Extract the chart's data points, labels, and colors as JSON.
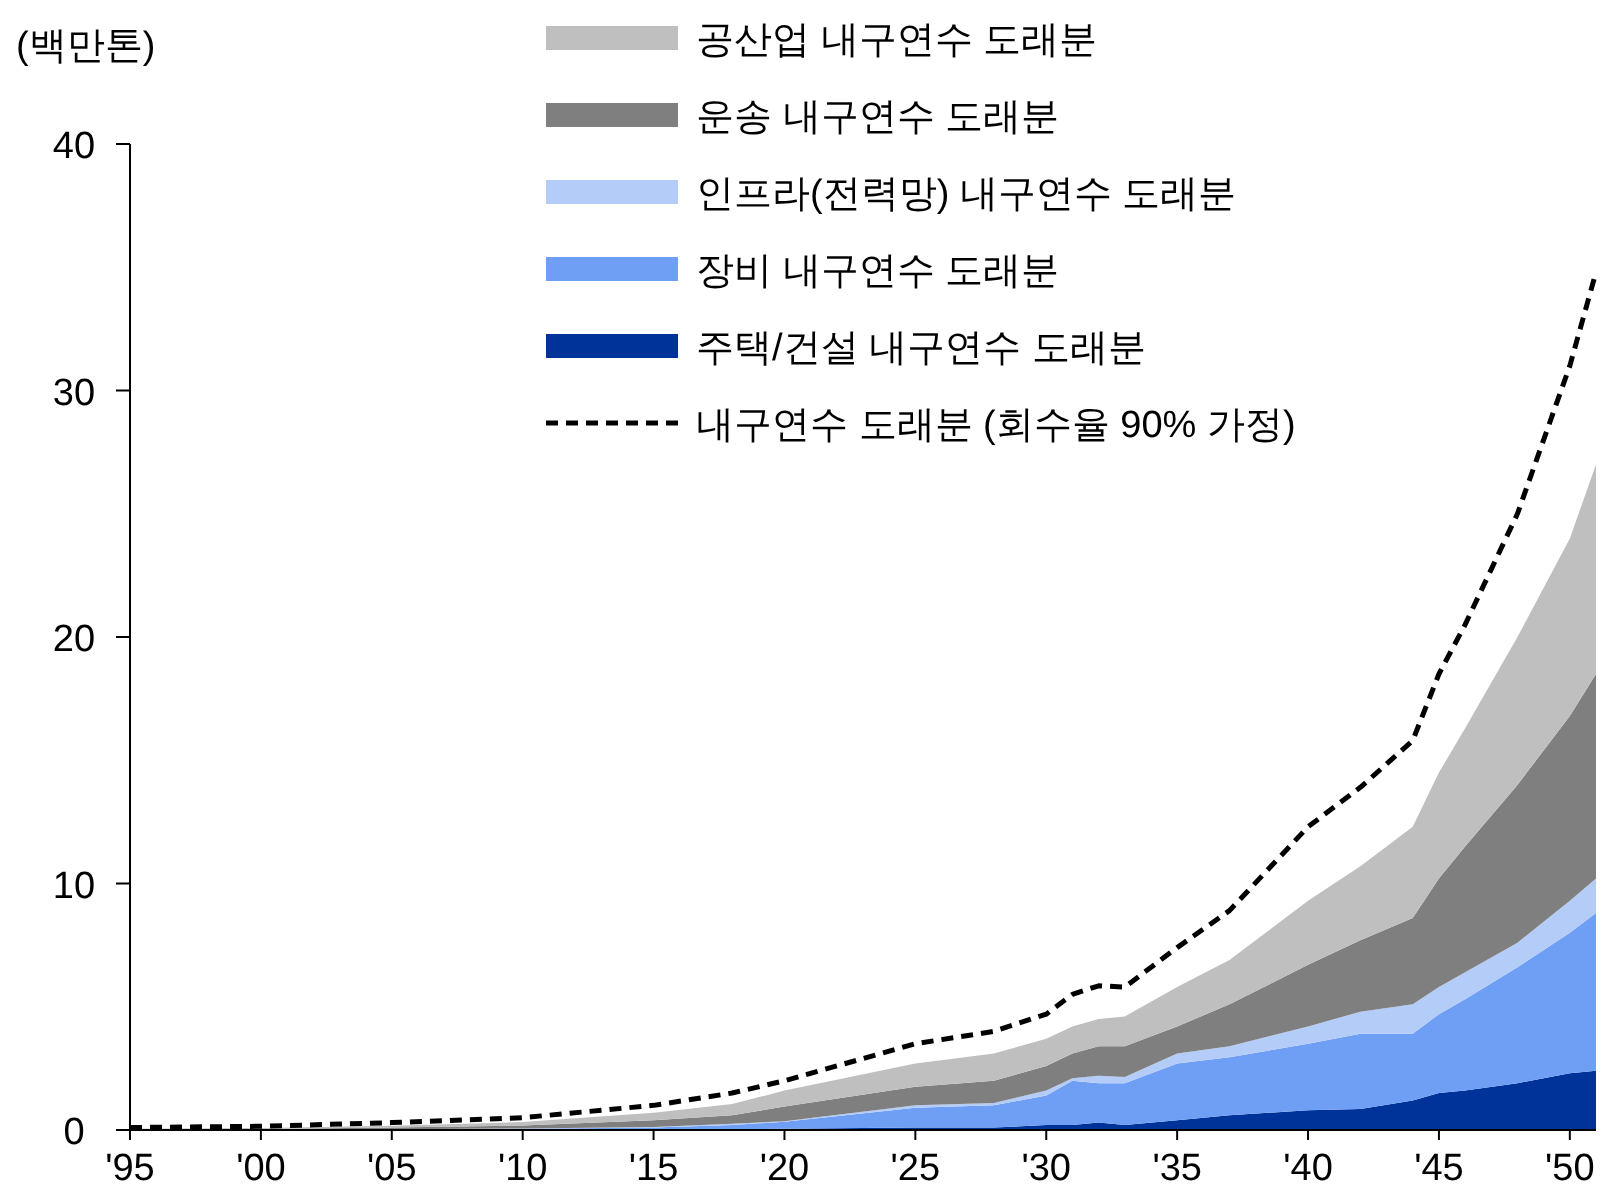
{
  "chart_data": {
    "type": "area",
    "stacked": true,
    "ylabel": "(백만톤)",
    "legend": "top",
    "x": [
      1995,
      2000,
      2005,
      2010,
      2015,
      2018,
      2020,
      2025,
      2028,
      2030,
      2031,
      2032,
      2033,
      2035,
      2037,
      2040,
      2042,
      2044,
      2045,
      2046,
      2048,
      2050,
      2051
    ],
    "xlim": [
      1995,
      2051
    ],
    "xticks": [
      {
        "value": 1995,
        "label": "'95"
      },
      {
        "value": 2000,
        "label": "'00"
      },
      {
        "value": 2005,
        "label": "'05"
      },
      {
        "value": 2010,
        "label": "'10"
      },
      {
        "value": 2015,
        "label": "'15"
      },
      {
        "value": 2020,
        "label": "'20"
      },
      {
        "value": 2025,
        "label": "'25"
      },
      {
        "value": 2030,
        "label": "'30"
      },
      {
        "value": 2035,
        "label": "'35"
      },
      {
        "value": 2040,
        "label": "'40"
      },
      {
        "value": 2045,
        "label": "'45"
      },
      {
        "value": 2050,
        "label": "'50"
      }
    ],
    "ylim": [
      0,
      40
    ],
    "yticks": [
      0,
      10,
      20,
      30,
      40
    ],
    "series": [
      {
        "name": "주택/건설 내구연수 도래분",
        "color": "#00339a",
        "values": [
          0,
          0,
          0,
          0,
          0.02,
          0.03,
          0.05,
          0.1,
          0.1,
          0.2,
          0.2,
          0.3,
          0.2,
          0.4,
          0.6,
          0.8,
          0.85,
          1.2,
          1.5,
          1.6,
          1.9,
          2.3,
          2.4
        ]
      },
      {
        "name": "장비 내구연수 도래분",
        "color": "#6f9ff5",
        "values": [
          0,
          0.01,
          0.02,
          0.05,
          0.08,
          0.17,
          0.28,
          0.8,
          0.9,
          1.2,
          1.8,
          1.6,
          1.7,
          2.3,
          2.35,
          2.7,
          3.05,
          2.7,
          3.2,
          3.7,
          4.7,
          5.7,
          6.4
        ]
      },
      {
        "name": "인프라(전력망) 내구연수 도래분",
        "color": "#b4ccf8",
        "values": [
          0,
          0,
          0.01,
          0.01,
          0.02,
          0.05,
          0.03,
          0.1,
          0.1,
          0.2,
          0.1,
          0.3,
          0.25,
          0.4,
          0.45,
          0.7,
          0.9,
          1.2,
          1.1,
          1.1,
          1.0,
          1.3,
          1.4
        ]
      },
      {
        "name": "운송 내구연수 도래분",
        "color": "#7f7f7f",
        "values": [
          0.02,
          0.03,
          0.07,
          0.12,
          0.28,
          0.35,
          0.59,
          0.75,
          0.9,
          1.0,
          1.0,
          1.2,
          1.25,
          1.1,
          1.7,
          2.5,
          2.9,
          3.5,
          4.4,
          5.1,
          6.4,
          7.5,
          8.3
        ]
      },
      {
        "name": "공산업 내구연수 도래분",
        "color": "#bfbfbf",
        "values": [
          0.03,
          0.04,
          0.07,
          0.14,
          0.3,
          0.45,
          0.65,
          0.95,
          1.1,
          1.1,
          1.1,
          1.1,
          1.2,
          1.6,
          1.8,
          2.6,
          3.0,
          3.7,
          4.3,
          4.8,
          6.0,
          7.2,
          8.5
        ]
      },
      {
        "name": "내구연수 도래분 (회수율 90% 가정)",
        "type": "line",
        "line_style": "dashed",
        "color": "#000000",
        "values": [
          0.1,
          0.15,
          0.3,
          0.5,
          1.0,
          1.5,
          2.0,
          3.5,
          4.0,
          4.7,
          5.5,
          5.85,
          5.8,
          7.4,
          8.9,
          12.3,
          13.9,
          15.8,
          18.5,
          20.5,
          25.0,
          31.0,
          34.8
        ]
      }
    ]
  }
}
